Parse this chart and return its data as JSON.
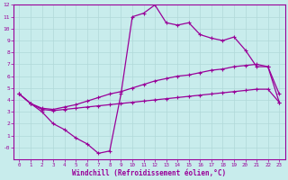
{
  "xlabel": "Windchill (Refroidissement éolien,°C)",
  "background_color": "#c8ecec",
  "grid_color": "#b0d8d8",
  "line_color": "#990099",
  "spine_color": "#990099",
  "xlim": [
    -0.5,
    23.5
  ],
  "ylim": [
    -1,
    12
  ],
  "xticks": [
    0,
    1,
    2,
    3,
    4,
    5,
    6,
    7,
    8,
    9,
    10,
    11,
    12,
    13,
    14,
    15,
    16,
    17,
    18,
    19,
    20,
    21,
    22,
    23
  ],
  "yticks": [
    0,
    1,
    2,
    3,
    4,
    5,
    6,
    7,
    8,
    9,
    10,
    11,
    12
  ],
  "ytick_labels": [
    "-0",
    "1",
    "2",
    "3",
    "4",
    "5",
    "6",
    "7",
    "8",
    "9",
    "10",
    "11",
    "12"
  ],
  "curve1_x": [
    0,
    1,
    2,
    3,
    4,
    5,
    6,
    7,
    8,
    9,
    10,
    11,
    12,
    13,
    14,
    15,
    16,
    17,
    18,
    19,
    20,
    21,
    22,
    23
  ],
  "curve1_y": [
    4.5,
    3.7,
    3.0,
    2.0,
    1.5,
    0.8,
    0.3,
    -0.5,
    -0.3,
    4.5,
    11.0,
    11.3,
    12.0,
    10.5,
    10.3,
    10.5,
    9.5,
    9.2,
    9.0,
    9.3,
    8.2,
    6.8,
    6.8,
    4.5
  ],
  "curve2_x": [
    0,
    1,
    2,
    3,
    4,
    5,
    6,
    7,
    8,
    9,
    10,
    11,
    12,
    13,
    14,
    15,
    16,
    17,
    18,
    19,
    20,
    21,
    22,
    23
  ],
  "curve2_y": [
    4.5,
    3.7,
    3.3,
    3.2,
    3.4,
    3.6,
    3.9,
    4.2,
    4.5,
    4.7,
    5.0,
    5.3,
    5.6,
    5.8,
    6.0,
    6.1,
    6.3,
    6.5,
    6.6,
    6.8,
    6.9,
    7.0,
    6.8,
    3.8
  ],
  "curve3_x": [
    0,
    1,
    2,
    3,
    4,
    5,
    6,
    7,
    8,
    9,
    10,
    11,
    12,
    13,
    14,
    15,
    16,
    17,
    18,
    19,
    20,
    21,
    22,
    23
  ],
  "curve3_y": [
    4.5,
    3.7,
    3.2,
    3.1,
    3.2,
    3.3,
    3.4,
    3.5,
    3.6,
    3.7,
    3.8,
    3.9,
    4.0,
    4.1,
    4.2,
    4.3,
    4.4,
    4.5,
    4.6,
    4.7,
    4.8,
    4.9,
    4.9,
    3.8
  ]
}
